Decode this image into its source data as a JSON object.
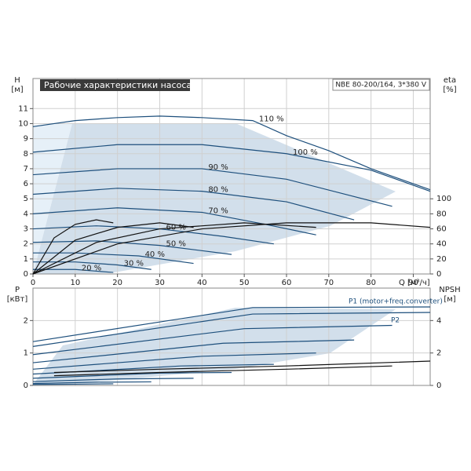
{
  "chart_data": [
    {
      "type": "line",
      "title": "Рабочие характеристики насоса",
      "subtitle": "NBE 80-200/164, 3*380 V",
      "y_label": "H",
      "y_unit": "[м]",
      "y2_label": "eta",
      "y2_unit": "[%]",
      "x_label": "Q [м³/ч]",
      "xlim": [
        0,
        94
      ],
      "xticks": [
        0,
        10,
        20,
        30,
        40,
        50,
        60,
        70,
        80,
        90
      ],
      "ylim": [
        0,
        13
      ],
      "yticks": [
        0,
        1,
        2,
        3,
        4,
        5,
        6,
        7,
        8,
        9,
        10,
        11
      ],
      "y2lim": [
        0,
        260
      ],
      "y2ticks": [
        0,
        20,
        40,
        60,
        80,
        100
      ],
      "grid": true,
      "series": [
        {
          "name": "110 %",
          "color": "#1d4f7c",
          "x": [
            0,
            10,
            20,
            30,
            40,
            52,
            60,
            70,
            80,
            94
          ],
          "values": [
            9.8,
            10.2,
            10.4,
            10.5,
            10.4,
            10.2,
            9.2,
            8.2,
            7.0,
            5.6
          ]
        },
        {
          "name": "100 %",
          "color": "#1d4f7c",
          "x": [
            0,
            20,
            40,
            60,
            80,
            94
          ],
          "values": [
            8.1,
            8.6,
            8.6,
            8.0,
            6.9,
            5.5
          ]
        },
        {
          "name": "90 %",
          "color": "#1d4f7c",
          "x": [
            0,
            20,
            40,
            60,
            85
          ],
          "values": [
            6.6,
            7.0,
            7.0,
            6.3,
            4.5
          ]
        },
        {
          "name": "80 %",
          "color": "#1d4f7c",
          "x": [
            0,
            20,
            40,
            60,
            76
          ],
          "values": [
            5.3,
            5.7,
            5.5,
            4.8,
            3.6
          ]
        },
        {
          "name": "70 %",
          "color": "#1d4f7c",
          "x": [
            0,
            20,
            40,
            55,
            67
          ],
          "values": [
            4.0,
            4.4,
            4.1,
            3.3,
            2.6
          ]
        },
        {
          "name": "60 %",
          "color": "#1d4f7c",
          "x": [
            0,
            15,
            30,
            45,
            57
          ],
          "values": [
            3.0,
            3.2,
            3.0,
            2.5,
            2.0
          ]
        },
        {
          "name": "50 %",
          "color": "#1d4f7c",
          "x": [
            0,
            15,
            30,
            47
          ],
          "values": [
            2.1,
            2.2,
            1.9,
            1.3
          ]
        },
        {
          "name": "40 %",
          "color": "#1d4f7c",
          "x": [
            0,
            10,
            25,
            38
          ],
          "values": [
            1.4,
            1.4,
            1.2,
            0.7
          ]
        },
        {
          "name": "30 %",
          "color": "#1d4f7c",
          "x": [
            0,
            10,
            20,
            28
          ],
          "values": [
            0.8,
            0.8,
            0.6,
            0.3
          ]
        },
        {
          "name": "20 %",
          "color": "#1d4f7c",
          "x": [
            0,
            10,
            19
          ],
          "values": [
            0.3,
            0.3,
            0.1
          ]
        },
        {
          "color": "#111",
          "axis": "y2",
          "x": [
            0,
            20,
            40,
            60,
            80,
            94
          ],
          "values": [
            0,
            40,
            60,
            68,
            68,
            62
          ]
        },
        {
          "color": "#111",
          "axis": "y2",
          "x": [
            0,
            15,
            30,
            50,
            67
          ],
          "values": [
            0,
            42,
            60,
            68,
            62
          ]
        },
        {
          "color": "#111",
          "axis": "y2",
          "x": [
            0,
            10,
            20,
            30,
            38
          ],
          "values": [
            0,
            45,
            62,
            68,
            62
          ]
        },
        {
          "color": "#111",
          "axis": "y2",
          "x": [
            0,
            5,
            10,
            15,
            19
          ],
          "values": [
            0,
            48,
            66,
            72,
            68
          ]
        }
      ]
    },
    {
      "type": "line",
      "y_label": "P",
      "y_unit": "[кВт]",
      "y2_label": "NPSH",
      "y2_unit": "[м]",
      "xlim": [
        0,
        94
      ],
      "ylim": [
        0,
        3
      ],
      "yticks": [
        0,
        1,
        2
      ],
      "y2lim": [
        0,
        6
      ],
      "y2ticks": [
        0,
        2,
        4
      ],
      "grid": true,
      "annotations": [
        "P1 (motor+freq.converter)",
        "P2"
      ],
      "series": [
        {
          "color": "#1d4f7c",
          "x": [
            0,
            52,
            94
          ],
          "values": [
            1.35,
            2.4,
            2.42
          ]
        },
        {
          "color": "#1d4f7c",
          "x": [
            0,
            52,
            94
          ],
          "values": [
            1.2,
            2.2,
            2.25
          ]
        },
        {
          "color": "#1d4f7c",
          "x": [
            0,
            50,
            85
          ],
          "values": [
            0.95,
            1.75,
            1.85
          ]
        },
        {
          "color": "#1d4f7c",
          "x": [
            0,
            45,
            76
          ],
          "values": [
            0.7,
            1.3,
            1.4
          ]
        },
        {
          "color": "#1d4f7c",
          "x": [
            0,
            40,
            67
          ],
          "values": [
            0.5,
            0.9,
            1.0
          ]
        },
        {
          "color": "#1d4f7c",
          "x": [
            0,
            35,
            57
          ],
          "values": [
            0.35,
            0.6,
            0.65
          ]
        },
        {
          "color": "#1d4f7c",
          "x": [
            0,
            30,
            47
          ],
          "values": [
            0.22,
            0.38,
            0.4
          ]
        },
        {
          "color": "#1d4f7c",
          "x": [
            0,
            20,
            38
          ],
          "values": [
            0.12,
            0.2,
            0.22
          ]
        },
        {
          "color": "#1d4f7c",
          "x": [
            0,
            15,
            28
          ],
          "values": [
            0.06,
            0.1,
            0.11
          ]
        },
        {
          "color": "#1d4f7c",
          "x": [
            0,
            10,
            19
          ],
          "values": [
            0.03,
            0.04,
            0.05
          ]
        },
        {
          "color": "#111",
          "axis": "y2",
          "x": [
            5,
            30,
            60,
            94
          ],
          "values": [
            0.8,
            1.0,
            1.2,
            1.5
          ]
        },
        {
          "color": "#111",
          "axis": "y2",
          "x": [
            5,
            30,
            60,
            85
          ],
          "values": [
            0.6,
            0.8,
            1.0,
            1.2
          ]
        }
      ]
    }
  ]
}
